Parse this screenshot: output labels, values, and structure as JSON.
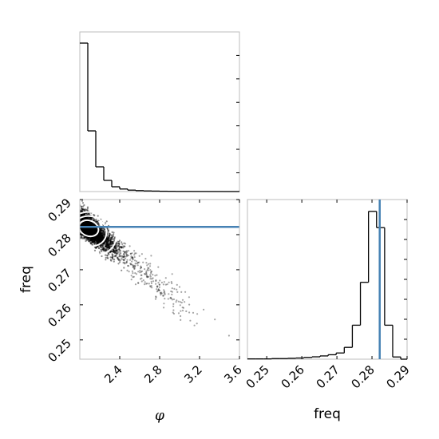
{
  "chart_data": {
    "type": "corner",
    "parameters": [
      "φ",
      "freq"
    ],
    "axis_labels": {
      "phi": "φ",
      "freq": "freq"
    },
    "truth": {
      "freq": 0.2822
    },
    "truth_color": "#4682b4",
    "grid": false,
    "panels": [
      {
        "id": "hist-phi",
        "type": "histogram",
        "x_param": "phi",
        "xlim": [
          2.0,
          3.6
        ],
        "bins": [
          2.0,
          2.08,
          2.16,
          2.24,
          2.32,
          2.4,
          2.48,
          2.56,
          2.64,
          2.72,
          2.8,
          2.88,
          2.96,
          3.04,
          3.12,
          3.2,
          3.28,
          3.36,
          3.44,
          3.52,
          3.6
        ],
        "counts": [
          0.93,
          0.38,
          0.155,
          0.07,
          0.03,
          0.016,
          0.009,
          0.006,
          0.004,
          0.003,
          0.002,
          0.0015,
          0.001,
          0.001,
          0.0008,
          0.0006,
          0.0005,
          0.0004,
          0.0003,
          0.0003
        ],
        "ylim": [
          0,
          1.0
        ]
      },
      {
        "id": "scatter-phi-freq",
        "type": "scatter",
        "x_param": "phi",
        "y_param": "freq",
        "xlim": [
          2.0,
          3.6
        ],
        "ylim": [
          0.2445,
          0.29
        ],
        "x_ticks": [
          "2.4",
          "2.8",
          "3.2",
          "3.6"
        ],
        "y_ticks": [
          "0.25",
          "0.26",
          "0.27",
          "0.28",
          "0.29"
        ],
        "x_tick_values": [
          2.4,
          2.8,
          3.2,
          3.6
        ],
        "y_tick_values": [
          0.25,
          0.26,
          0.27,
          0.28,
          0.29
        ],
        "ridge": {
          "phi": [
            2.0,
            3.3
          ],
          "freq": [
            0.2845,
            0.254
          ]
        },
        "density_peak": {
          "phi": 2.02,
          "freq": 0.2835
        },
        "contours": [
          {
            "phi_center": 2.09,
            "freq_center": 0.2818,
            "phi_half": 0.1,
            "freq_half": 0.0022
          },
          {
            "phi_center": 2.1,
            "freq_center": 0.281,
            "phi_half": 0.17,
            "freq_half": 0.0042
          },
          {
            "phi_center": 2.12,
            "freq_center": 0.2803,
            "phi_half": 0.25,
            "freq_half": 0.006
          }
        ]
      },
      {
        "id": "hist-freq",
        "type": "histogram",
        "x_param": "freq",
        "xlim": [
          0.2445,
          0.29
        ],
        "x_ticks": [
          "0.25",
          "0.26",
          "0.27",
          "0.28",
          "0.29"
        ],
        "x_tick_values": [
          0.25,
          0.26,
          0.27,
          0.28,
          0.29
        ],
        "bins": [
          0.2445,
          0.2468,
          0.2491,
          0.2514,
          0.2537,
          0.256,
          0.2583,
          0.2606,
          0.2629,
          0.2652,
          0.2675,
          0.2698,
          0.2721,
          0.2744,
          0.2767,
          0.279,
          0.2813,
          0.2836,
          0.2859,
          0.2882,
          0.29
        ],
        "counts": [
          0.002,
          0.002,
          0.002,
          0.004,
          0.004,
          0.006,
          0.008,
          0.012,
          0.016,
          0.022,
          0.03,
          0.042,
          0.08,
          0.23,
          0.52,
          1.0,
          0.89,
          0.23,
          0.015,
          0.0
        ],
        "ylim": [
          0,
          1.08
        ]
      }
    ]
  }
}
